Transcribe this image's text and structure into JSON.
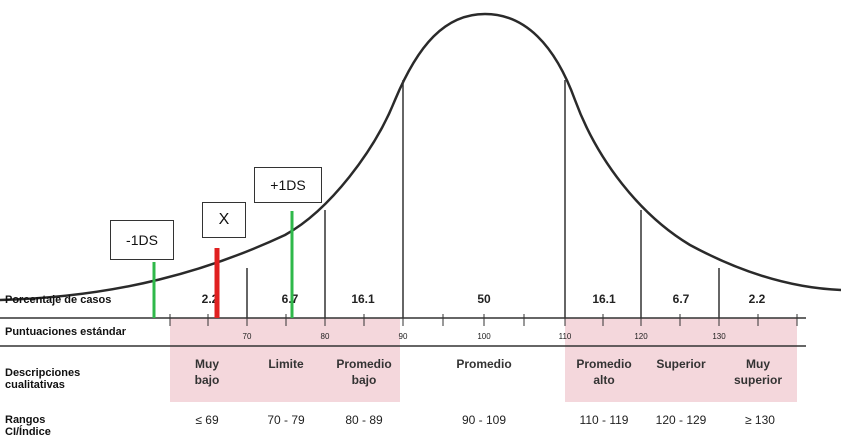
{
  "row_labels": {
    "percentage": "Porcentaje de casos",
    "standard_scores": "Puntuaciones estándar",
    "descriptions": "Descripciones cualitativas",
    "ranges": "Rangos CI/Índice"
  },
  "percentages": [
    "2.2",
    "6.7",
    "16.1",
    "50",
    "16.1",
    "6.7",
    "2.2"
  ],
  "standard_score_ticks": [
    "70",
    "80",
    "90",
    "100",
    "110",
    "120",
    "130"
  ],
  "descriptions": [
    "Muy bajo",
    "Limite",
    "Promedio bajo",
    "Promedio",
    "Promedio alto",
    "Superior",
    "Muy superior"
  ],
  "ranges": [
    "≤ 69",
    "70 - 79",
    "80 - 89",
    "90 - 109",
    "110 - 119",
    "120 - 129",
    "≥ 130"
  ],
  "markers": {
    "minus_1ds": "-1DS",
    "x": "X",
    "plus_1ds": "+1DS"
  },
  "colors": {
    "green_marker": "#2fb84a",
    "red_marker": "#e02020",
    "band": "#f4d7dc",
    "curve": "#2a2a2a"
  }
}
